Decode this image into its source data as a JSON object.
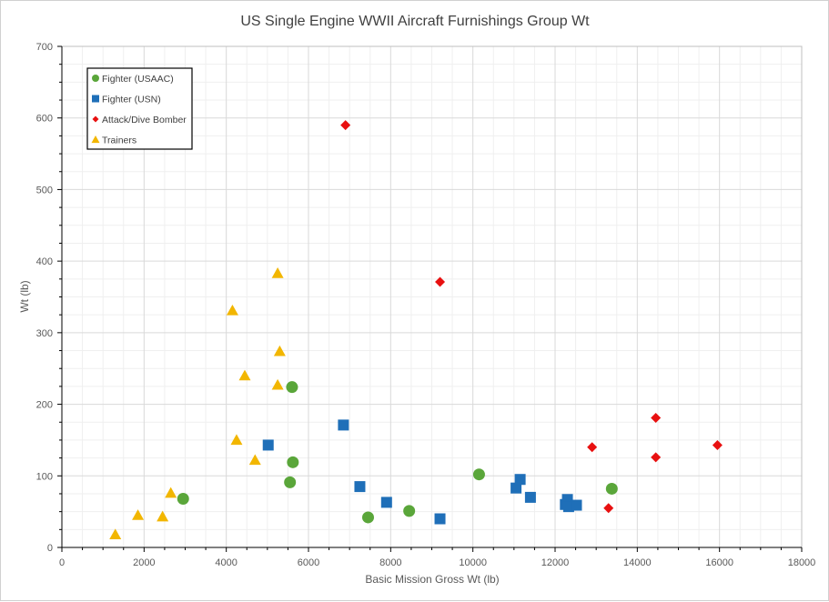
{
  "chart_data": {
    "type": "scatter",
    "title": "US Single Engine WWII Aircraft Furnishings Group Wt",
    "xlabel": "Basic Mission Gross Wt (lb)",
    "ylabel": "Wt (lb)",
    "xlim": [
      0,
      18000
    ],
    "ylim": [
      0,
      700
    ],
    "x_ticks": [
      0,
      2000,
      4000,
      6000,
      8000,
      10000,
      12000,
      14000,
      16000,
      18000
    ],
    "y_ticks": [
      0,
      100,
      200,
      300,
      400,
      500,
      600,
      700
    ],
    "x_tick_labels": [
      "0",
      "2000",
      "4000",
      "6000",
      "8000",
      "10000",
      "12000",
      "14000",
      "16000",
      "18000"
    ],
    "y_tick_labels": [
      "0",
      "100",
      "200",
      "300",
      "400",
      "500",
      "600",
      "700"
    ],
    "grid": true,
    "legend_position": "top-left",
    "series": [
      {
        "name": "Fighter (USAAC)",
        "marker": "circle",
        "color": "#5aa63a",
        "points": [
          [
            2950,
            68
          ],
          [
            5600,
            224
          ],
          [
            5620,
            119
          ],
          [
            5550,
            91
          ],
          [
            7450,
            42
          ],
          [
            8450,
            51
          ],
          [
            10150,
            102
          ],
          [
            13380,
            82
          ]
        ]
      },
      {
        "name": "Fighter (USN)",
        "marker": "square",
        "color": "#1f6fb8",
        "points": [
          [
            5020,
            143
          ],
          [
            6850,
            171
          ],
          [
            7250,
            85
          ],
          [
            7900,
            63
          ],
          [
            9200,
            40
          ],
          [
            11050,
            83
          ],
          [
            11150,
            95
          ],
          [
            11400,
            70
          ],
          [
            12250,
            60
          ],
          [
            12300,
            67
          ],
          [
            12330,
            57
          ],
          [
            12520,
            59
          ]
        ]
      },
      {
        "name": "Attack/Dive Bomber",
        "marker": "diamond",
        "color": "#e81010",
        "points": [
          [
            6900,
            590
          ],
          [
            9200,
            371
          ],
          [
            12900,
            140
          ],
          [
            13300,
            55
          ],
          [
            14450,
            181
          ],
          [
            14450,
            126
          ],
          [
            15950,
            143
          ]
        ]
      },
      {
        "name": "Trainers",
        "marker": "triangle",
        "color": "#f2b600",
        "points": [
          [
            1300,
            18
          ],
          [
            1850,
            45
          ],
          [
            2450,
            43
          ],
          [
            2650,
            76
          ],
          [
            4150,
            331
          ],
          [
            4250,
            150
          ],
          [
            4450,
            240
          ],
          [
            4700,
            122
          ],
          [
            5250,
            383
          ],
          [
            5250,
            227
          ],
          [
            5300,
            274
          ]
        ]
      }
    ]
  }
}
